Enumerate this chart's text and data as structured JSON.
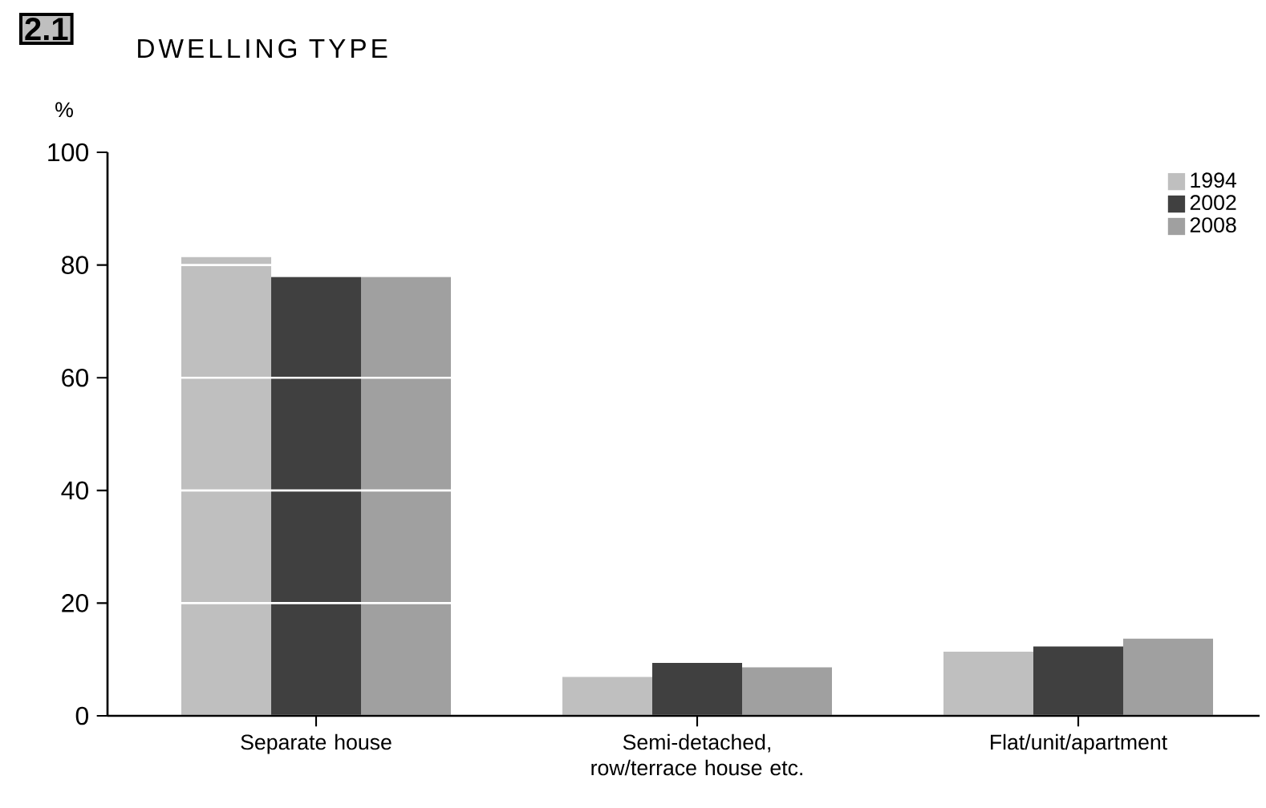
{
  "chart_data": {
    "type": "bar",
    "title": "DWELLING TYPE",
    "ylabel": "%",
    "annotations": [
      "2.1"
    ],
    "categories": [
      "Separate house",
      "Semi-detached, row/terrace house etc.",
      "Flat/unit/apartment"
    ],
    "series": [
      {
        "name": "1994",
        "color": "#bfbfbf",
        "values": [
          81.4,
          6.9,
          11.4
        ]
      },
      {
        "name": "2002",
        "color": "#404040",
        "values": [
          77.9,
          9.4,
          12.3
        ]
      },
      {
        "name": "2008",
        "color": "#a0a0a0",
        "values": [
          77.9,
          8.6,
          13.7
        ]
      }
    ],
    "ylim": [
      0,
      100
    ],
    "yticks": [
      0,
      20,
      40,
      60,
      80,
      100
    ],
    "grid": "y",
    "legend": "top right"
  }
}
